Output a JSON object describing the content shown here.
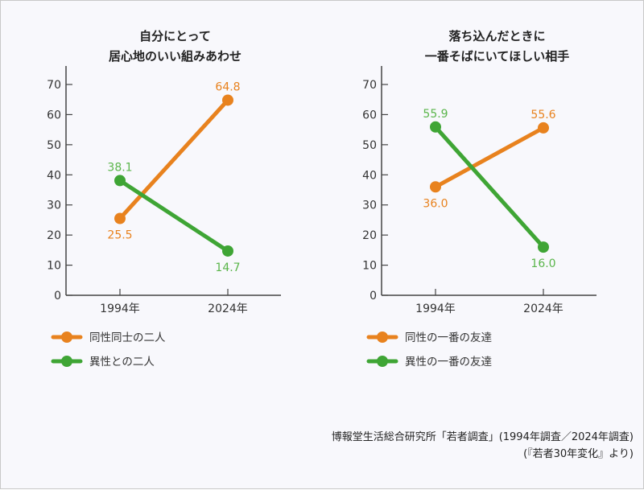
{
  "colors": {
    "orange": "#e8821e",
    "green": "#3fa535",
    "green_label": "#5ab54a",
    "axis": "#444"
  },
  "chart_data": [
    {
      "type": "line",
      "title": [
        "自分にとって",
        "居心地のいい組みあわせ"
      ],
      "categories": [
        "1994年",
        "2024年"
      ],
      "ylim": [
        0,
        70
      ],
      "yticks": [
        "0",
        "10",
        "20",
        "30",
        "40",
        "50",
        "60",
        "70"
      ],
      "grid": false,
      "legend_position": "bottom",
      "series": [
        {
          "name": "同性同士の二人",
          "values": [
            25.5,
            64.8
          ],
          "labels": [
            "25.5",
            "64.8"
          ],
          "color": "orange"
        },
        {
          "name": "異性との二人",
          "values": [
            38.1,
            14.7
          ],
          "labels": [
            "38.1",
            "14.7"
          ],
          "color": "green"
        }
      ]
    },
    {
      "type": "line",
      "title": [
        "落ち込んだときに",
        "一番そばにいてほしい相手"
      ],
      "categories": [
        "1994年",
        "2024年"
      ],
      "ylim": [
        0,
        70
      ],
      "yticks": [
        "0",
        "10",
        "20",
        "30",
        "40",
        "50",
        "60",
        "70"
      ],
      "grid": false,
      "legend_position": "bottom",
      "series": [
        {
          "name": "同性の一番の友達",
          "values": [
            36.0,
            55.6
          ],
          "labels": [
            "36.0",
            "55.6"
          ],
          "color": "orange"
        },
        {
          "name": "異性の一番の友達",
          "values": [
            55.9,
            16.0
          ],
          "labels": [
            "55.9",
            "16.0"
          ],
          "color": "green"
        }
      ]
    }
  ],
  "source": {
    "line1": "博報堂生活総合研究所「若者調査」(1994年調査／2024年調査)",
    "line2": "(『若者30年変化』より)"
  }
}
